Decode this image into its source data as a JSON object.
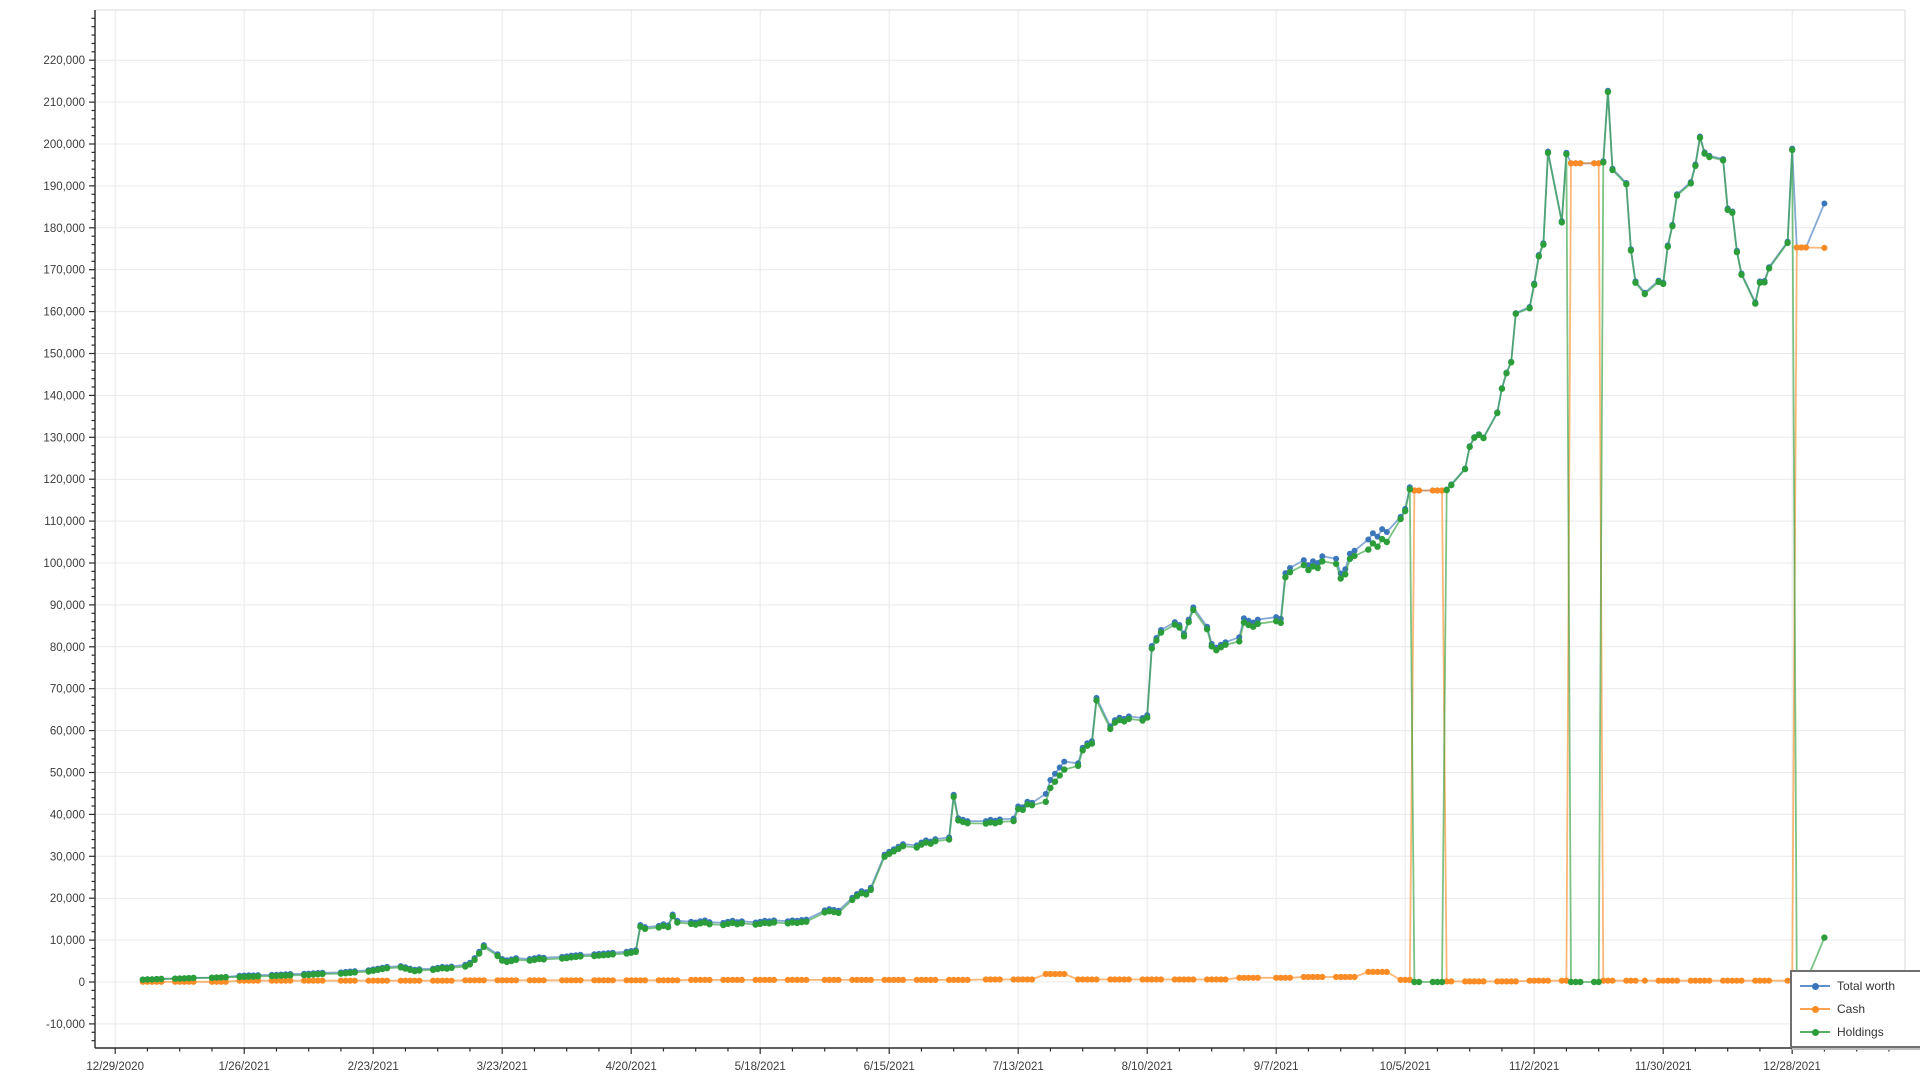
{
  "chart_data": {
    "type": "line",
    "title": "",
    "xlabel": "",
    "ylabel": "",
    "values_unit": "USD thousands",
    "x_axis": {
      "tick_labels": [
        "12/29/2020",
        "1/26/2021",
        "2/23/2021",
        "3/23/2021",
        "4/20/2021",
        "5/18/2021",
        "6/15/2021",
        "7/13/2021",
        "8/10/2021",
        "9/7/2021",
        "10/5/2021",
        "11/2/2021",
        "11/30/2021",
        "12/28/2021"
      ],
      "tick_day_offsets": [
        0,
        28,
        56,
        84,
        112,
        140,
        168,
        196,
        224,
        252,
        280,
        308,
        336,
        364
      ],
      "minor_tick_interval_days": 7,
      "grid": true
    },
    "y_axis": {
      "tick_values_thousands": [
        -10,
        0,
        10,
        20,
        30,
        40,
        50,
        60,
        70,
        80,
        90,
        100,
        110,
        120,
        130,
        140,
        150,
        160,
        170,
        180,
        190,
        200,
        210,
        220
      ],
      "tick_labels": [
        "-10,000",
        "0",
        "10,000",
        "20,000",
        "30,000",
        "40,000",
        "50,000",
        "60,000",
        "70,000",
        "80,000",
        "90,000",
        "100,000",
        "110,000",
        "120,000",
        "130,000",
        "140,000",
        "150,000",
        "160,000",
        "170,000",
        "180,000",
        "190,000",
        "200,000",
        "210,000",
        "220,000"
      ],
      "minor_tick_interval_thousands": 2,
      "range_thousands": [
        -15.5,
        231.5
      ],
      "grid": true
    },
    "legend": {
      "position": "bottom-right",
      "items": [
        {
          "label": "Total worth",
          "color": "#3B76BB"
        },
        {
          "label": "Cash",
          "color": "#FB8B24"
        },
        {
          "label": "Holdings",
          "color": "#2B9E3A"
        }
      ]
    },
    "series_rule": "total_worth = cash + holdings for every point",
    "points_format": [
      "day_offset_from_12/29/2020",
      "cash_thousands",
      "holdings_thousands"
    ],
    "points": [
      [
        6,
        0.05,
        0.55
      ],
      [
        7,
        0.05,
        0.6
      ],
      [
        8,
        0.05,
        0.62
      ],
      [
        9,
        0.05,
        0.68
      ],
      [
        10,
        0.05,
        0.72
      ],
      [
        13,
        0.05,
        0.78
      ],
      [
        14,
        0.05,
        0.8
      ],
      [
        15,
        0.05,
        0.85
      ],
      [
        16,
        0.05,
        0.9
      ],
      [
        17,
        0.05,
        0.95
      ],
      [
        21,
        0.05,
        1.0
      ],
      [
        22,
        0.05,
        1.05
      ],
      [
        23,
        0.05,
        1.1
      ],
      [
        24,
        0.05,
        1.15
      ],
      [
        27,
        0.3,
        1.2
      ],
      [
        28,
        0.3,
        1.25
      ],
      [
        29,
        0.3,
        1.3
      ],
      [
        30,
        0.3,
        1.28
      ],
      [
        31,
        0.3,
        1.35
      ],
      [
        34,
        0.3,
        1.4
      ],
      [
        35,
        0.3,
        1.45
      ],
      [
        36,
        0.3,
        1.5
      ],
      [
        37,
        0.3,
        1.55
      ],
      [
        38,
        0.3,
        1.6
      ],
      [
        41,
        0.3,
        1.65
      ],
      [
        42,
        0.3,
        1.7
      ],
      [
        43,
        0.3,
        1.78
      ],
      [
        44,
        0.3,
        1.85
      ],
      [
        45,
        0.3,
        1.9
      ],
      [
        49,
        0.3,
        2.0
      ],
      [
        50,
        0.3,
        2.1
      ],
      [
        51,
        0.3,
        2.2
      ],
      [
        52,
        0.3,
        2.3
      ],
      [
        55,
        0.3,
        2.5
      ],
      [
        56,
        0.3,
        2.7
      ],
      [
        57,
        0.3,
        2.9
      ],
      [
        58,
        0.3,
        3.1
      ],
      [
        59,
        0.3,
        3.3
      ],
      [
        62,
        0.3,
        3.5
      ],
      [
        63,
        0.3,
        3.2
      ],
      [
        64,
        0.3,
        2.9
      ],
      [
        65,
        0.3,
        2.6
      ],
      [
        66,
        0.3,
        2.75
      ],
      [
        69,
        0.3,
        2.9
      ],
      [
        70,
        0.3,
        3.1
      ],
      [
        71,
        0.3,
        3.3
      ],
      [
        72,
        0.3,
        3.2
      ],
      [
        73,
        0.3,
        3.4
      ],
      [
        76,
        0.4,
        3.7
      ],
      [
        77,
        0.4,
        4.2
      ],
      [
        78,
        0.4,
        5.3
      ],
      [
        79,
        0.4,
        6.8
      ],
      [
        80,
        0.4,
        8.4
      ],
      [
        83,
        0.4,
        6.2
      ],
      [
        84,
        0.4,
        5.1
      ],
      [
        85,
        0.4,
        4.8
      ],
      [
        86,
        0.4,
        5.0
      ],
      [
        87,
        0.4,
        5.3
      ],
      [
        90,
        0.4,
        5.1
      ],
      [
        91,
        0.4,
        5.3
      ],
      [
        92,
        0.4,
        5.5
      ],
      [
        93,
        0.4,
        5.4
      ],
      [
        97,
        0.4,
        5.6
      ],
      [
        98,
        0.4,
        5.7
      ],
      [
        99,
        0.4,
        5.9
      ],
      [
        100,
        0.4,
        6.0
      ],
      [
        101,
        0.4,
        6.1
      ],
      [
        104,
        0.4,
        6.2
      ],
      [
        105,
        0.4,
        6.3
      ],
      [
        106,
        0.4,
        6.4
      ],
      [
        107,
        0.4,
        6.5
      ],
      [
        108,
        0.4,
        6.6
      ],
      [
        111,
        0.4,
        6.8
      ],
      [
        112,
        0.4,
        7.0
      ],
      [
        113,
        0.4,
        7.2
      ],
      [
        114,
        0.4,
        13.2
      ],
      [
        115,
        0.4,
        12.7
      ],
      [
        118,
        0.4,
        13.0
      ],
      [
        119,
        0.4,
        13.4
      ],
      [
        120,
        0.4,
        13.1
      ],
      [
        121,
        0.4,
        15.7
      ],
      [
        122,
        0.4,
        14.2
      ],
      [
        125,
        0.5,
        13.9
      ],
      [
        126,
        0.5,
        13.7
      ],
      [
        127,
        0.5,
        14.0
      ],
      [
        128,
        0.5,
        14.2
      ],
      [
        129,
        0.5,
        13.8
      ],
      [
        132,
        0.5,
        13.6
      ],
      [
        133,
        0.5,
        13.9
      ],
      [
        134,
        0.5,
        14.1
      ],
      [
        135,
        0.5,
        13.8
      ],
      [
        136,
        0.5,
        14.0
      ],
      [
        139,
        0.5,
        13.7
      ],
      [
        140,
        0.5,
        13.9
      ],
      [
        141,
        0.5,
        14.1
      ],
      [
        142,
        0.5,
        14.0
      ],
      [
        143,
        0.5,
        14.2
      ],
      [
        146,
        0.5,
        14.0
      ],
      [
        147,
        0.5,
        14.2
      ],
      [
        148,
        0.5,
        14.1
      ],
      [
        149,
        0.5,
        14.3
      ],
      [
        150,
        0.5,
        14.4
      ],
      [
        154,
        0.5,
        16.6
      ],
      [
        155,
        0.5,
        16.9
      ],
      [
        156,
        0.5,
        16.7
      ],
      [
        157,
        0.5,
        16.5
      ],
      [
        160,
        0.5,
        19.6
      ],
      [
        161,
        0.5,
        20.5
      ],
      [
        162,
        0.5,
        21.2
      ],
      [
        163,
        0.5,
        20.9
      ],
      [
        164,
        0.5,
        22.0
      ],
      [
        167,
        0.5,
        29.9
      ],
      [
        168,
        0.5,
        30.6
      ],
      [
        169,
        0.5,
        31.2
      ],
      [
        170,
        0.5,
        31.8
      ],
      [
        171,
        0.5,
        32.4
      ],
      [
        174,
        0.5,
        32.1
      ],
      [
        175,
        0.5,
        32.8
      ],
      [
        176,
        0.5,
        33.3
      ],
      [
        177,
        0.5,
        33.0
      ],
      [
        178,
        0.5,
        33.6
      ],
      [
        181,
        0.5,
        34.0
      ],
      [
        182,
        0.5,
        44.2
      ],
      [
        183,
        0.5,
        38.6
      ],
      [
        184,
        0.5,
        38.2
      ],
      [
        185,
        0.5,
        37.9
      ],
      [
        189,
        0.6,
        37.8
      ],
      [
        190,
        0.6,
        38.1
      ],
      [
        191,
        0.6,
        37.9
      ],
      [
        192,
        0.6,
        38.2
      ],
      [
        195,
        0.6,
        38.4
      ],
      [
        196,
        0.6,
        41.3
      ],
      [
        197,
        0.6,
        41.1
      ],
      [
        198,
        0.6,
        42.4
      ],
      [
        199,
        0.6,
        42.2
      ],
      [
        202,
        1.9,
        43.0
      ],
      [
        203,
        1.9,
        46.3
      ],
      [
        204,
        1.9,
        47.8
      ],
      [
        205,
        1.9,
        49.3
      ],
      [
        206,
        1.9,
        50.7
      ],
      [
        209,
        0.6,
        51.6
      ],
      [
        210,
        0.6,
        55.3
      ],
      [
        211,
        0.6,
        56.4
      ],
      [
        212,
        0.6,
        56.9
      ],
      [
        213,
        0.6,
        67.2
      ],
      [
        216,
        0.6,
        60.4
      ],
      [
        217,
        0.6,
        61.9
      ],
      [
        218,
        0.6,
        62.5
      ],
      [
        219,
        0.6,
        62.2
      ],
      [
        220,
        0.6,
        62.8
      ],
      [
        223,
        0.6,
        62.4
      ],
      [
        224,
        0.6,
        63.1
      ],
      [
        225,
        0.6,
        79.6
      ],
      [
        226,
        0.6,
        81.5
      ],
      [
        227,
        0.6,
        83.4
      ],
      [
        230,
        0.6,
        85.3
      ],
      [
        231,
        0.6,
        84.6
      ],
      [
        232,
        0.6,
        82.5
      ],
      [
        233,
        0.6,
        85.9
      ],
      [
        234,
        0.6,
        88.8
      ],
      [
        237,
        0.6,
        84.2
      ],
      [
        238,
        0.6,
        80.1
      ],
      [
        239,
        0.6,
        79.2
      ],
      [
        240,
        0.6,
        79.9
      ],
      [
        241,
        0.6,
        80.5
      ],
      [
        244,
        1.0,
        81.3
      ],
      [
        245,
        1.0,
        85.8
      ],
      [
        246,
        1.0,
        85.2
      ],
      [
        247,
        1.0,
        84.8
      ],
      [
        248,
        1.0,
        85.5
      ],
      [
        252,
        1.0,
        86.1
      ],
      [
        253,
        1.0,
        85.7
      ],
      [
        254,
        1.0,
        96.6
      ],
      [
        255,
        1.0,
        97.8
      ],
      [
        258,
        1.2,
        99.5
      ],
      [
        259,
        1.2,
        98.3
      ],
      [
        260,
        1.2,
        99.2
      ],
      [
        261,
        1.2,
        98.8
      ],
      [
        262,
        1.2,
        100.4
      ],
      [
        265,
        1.2,
        99.8
      ],
      [
        266,
        1.2,
        96.3
      ],
      [
        267,
        1.2,
        97.3
      ],
      [
        268,
        1.2,
        101.0
      ],
      [
        269,
        1.2,
        101.7
      ],
      [
        272,
        2.4,
        103.2
      ],
      [
        273,
        2.4,
        104.7
      ],
      [
        274,
        2.4,
        103.9
      ],
      [
        275,
        2.4,
        105.7
      ],
      [
        276,
        2.4,
        105.0
      ],
      [
        279,
        0.5,
        110.5
      ],
      [
        280,
        0.5,
        112.4
      ],
      [
        281,
        0.5,
        117.6
      ],
      [
        282,
        117.3,
        0
      ],
      [
        283,
        117.3,
        0
      ],
      [
        286,
        117.3,
        0
      ],
      [
        287,
        117.3,
        0
      ],
      [
        288,
        117.3,
        0
      ],
      [
        289,
        0.15,
        117.4
      ],
      [
        290,
        0.15,
        118.6
      ],
      [
        293,
        0.15,
        122.4
      ],
      [
        294,
        0.15,
        127.7
      ],
      [
        295,
        0.15,
        129.9
      ],
      [
        296,
        0.15,
        130.6
      ],
      [
        297,
        0.15,
        129.8
      ],
      [
        300,
        0.15,
        135.8
      ],
      [
        301,
        0.15,
        141.6
      ],
      [
        302,
        0.15,
        145.3
      ],
      [
        303,
        0.15,
        147.9
      ],
      [
        304,
        0.15,
        159.5
      ],
      [
        307,
        0.3,
        160.8
      ],
      [
        308,
        0.3,
        166.4
      ],
      [
        309,
        0.3,
        173.2
      ],
      [
        310,
        0.3,
        176.0
      ],
      [
        311,
        0.3,
        197.9
      ],
      [
        314,
        0.3,
        181.3
      ],
      [
        315,
        0.3,
        197.6
      ],
      [
        316,
        195.4,
        0
      ],
      [
        317,
        195.4,
        0
      ],
      [
        318,
        195.4,
        0
      ],
      [
        321,
        195.4,
        0
      ],
      [
        322,
        195.4,
        0
      ],
      [
        323,
        0.3,
        195.6
      ],
      [
        324,
        0.3,
        212.4
      ],
      [
        325,
        0.3,
        193.8
      ],
      [
        328,
        0.3,
        190.4
      ],
      [
        329,
        0.3,
        174.6
      ],
      [
        330,
        0.3,
        166.9
      ],
      [
        332,
        0.3,
        164.2
      ],
      [
        335,
        0.3,
        167.1
      ],
      [
        336,
        0.3,
        166.6
      ],
      [
        337,
        0.3,
        175.5
      ],
      [
        338,
        0.3,
        180.4
      ],
      [
        339,
        0.3,
        187.7
      ],
      [
        342,
        0.3,
        190.6
      ],
      [
        343,
        0.3,
        194.8
      ],
      [
        344,
        0.3,
        201.5
      ],
      [
        345,
        0.3,
        197.7
      ],
      [
        346,
        0.3,
        196.9
      ],
      [
        349,
        0.3,
        196.1
      ],
      [
        350,
        0.3,
        184.3
      ],
      [
        351,
        0.3,
        183.6
      ],
      [
        352,
        0.3,
        174.2
      ],
      [
        353,
        0.3,
        168.8
      ],
      [
        356,
        0.3,
        161.9
      ],
      [
        357,
        0.3,
        166.9
      ],
      [
        358,
        0.3,
        167.0
      ],
      [
        359,
        0.3,
        170.3
      ],
      [
        363,
        0.3,
        176.4
      ],
      [
        364,
        0.3,
        198.6
      ],
      [
        365,
        175.3,
        0
      ],
      [
        366,
        175.3,
        0
      ],
      [
        367,
        175.3,
        0
      ],
      [
        371,
        175.2,
        10.6
      ]
    ],
    "colors": {
      "total_worth": "#3B76BB",
      "cash": "#FB8B24",
      "holdings": "#2B9E3A",
      "grid": "#e9e9e9",
      "axis": "#2b2b2b",
      "border": "#d8d8d8",
      "tick_label": "#3c3c3c"
    }
  }
}
